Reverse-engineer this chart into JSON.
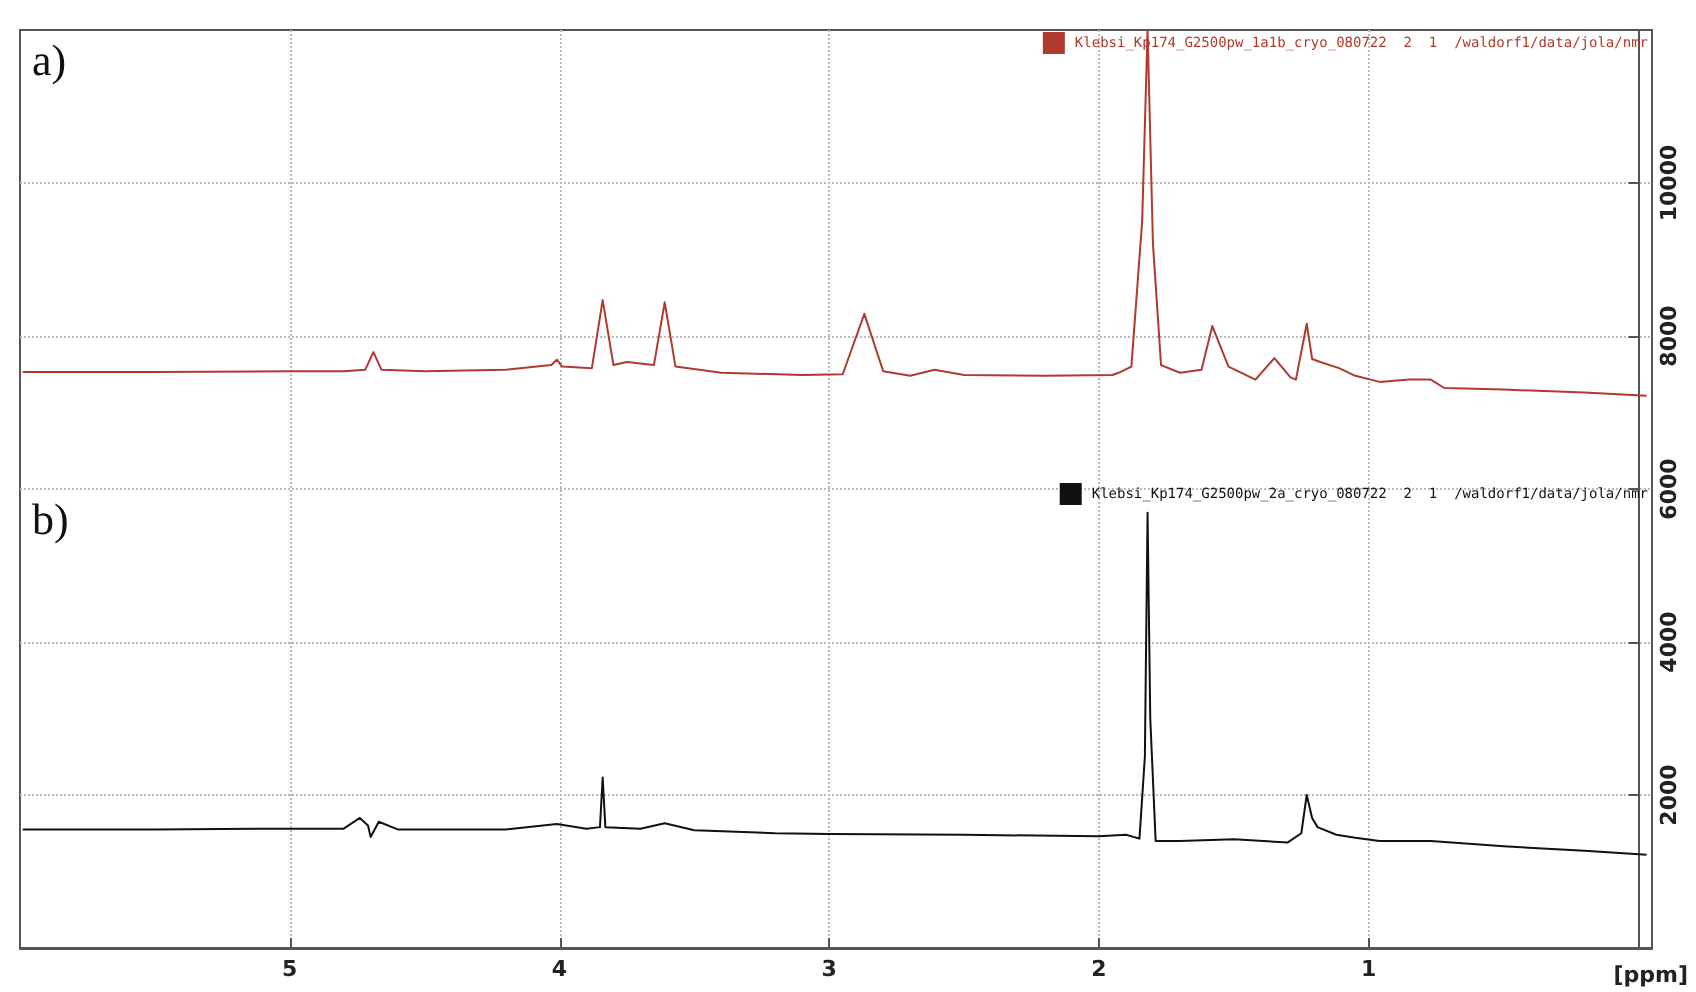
{
  "chart_data": {
    "type": "line",
    "xlabel": "[ppm]",
    "annotations": [
      "a)",
      "b)"
    ],
    "xlim": [
      6.0,
      -0.05
    ],
    "xticks": [
      5,
      4,
      3,
      2,
      1
    ],
    "ylim": [
      0,
      12000
    ],
    "yticks": [
      2000,
      4000,
      6000,
      8000,
      10000
    ],
    "grid": true,
    "legend": "top right",
    "marker": "none",
    "line_style": "solid",
    "series": [
      {
        "name": "Klebsi_Kp174_G2500pw_1a1b_cryo_080722  2  1  /waldorf1/data/jola/nmr",
        "color": "#b03a2e",
        "x": [
          5.99,
          5.5,
          5.0,
          4.8,
          4.72,
          4.69,
          4.66,
          4.5,
          4.2,
          4.03,
          4.01,
          3.99,
          3.88,
          3.84,
          3.8,
          3.75,
          3.65,
          3.61,
          3.57,
          3.4,
          3.1,
          2.95,
          2.87,
          2.8,
          2.7,
          2.61,
          2.5,
          2.2,
          1.95,
          1.92,
          1.88,
          1.84,
          1.82,
          1.8,
          1.77,
          1.7,
          1.62,
          1.58,
          1.52,
          1.42,
          1.35,
          1.29,
          1.27,
          1.23,
          1.21,
          1.18,
          1.11,
          1.05,
          0.96,
          0.85,
          0.77,
          0.72,
          0.5,
          0.2,
          -0.03
        ],
        "values": [
          7530,
          7530,
          7540,
          7540,
          7560,
          7790,
          7560,
          7540,
          7560,
          7620,
          7690,
          7600,
          7580,
          8470,
          7620,
          7660,
          7620,
          8440,
          7600,
          7520,
          7490,
          7500,
          8290,
          7540,
          7480,
          7560,
          7490,
          7480,
          7490,
          7530,
          7600,
          9500,
          12000,
          9200,
          7620,
          7520,
          7560,
          8130,
          7600,
          7430,
          7710,
          7460,
          7430,
          8160,
          7700,
          7660,
          7580,
          7480,
          7400,
          7430,
          7430,
          7320,
          7300,
          7260,
          7220
        ]
      },
      {
        "name": "Klebsi_Kp174_G2500pw_2a_cryo_080722  2  1  /waldorf1/data/jola/nmr",
        "color": "#111111",
        "x": [
          5.99,
          5.5,
          5.0,
          4.8,
          4.74,
          4.71,
          4.7,
          4.67,
          4.6,
          4.2,
          4.01,
          3.9,
          3.85,
          3.84,
          3.83,
          3.7,
          3.61,
          3.5,
          3.2,
          3.0,
          2.5,
          2.0,
          1.9,
          1.85,
          1.83,
          1.82,
          1.81,
          1.79,
          1.7,
          1.5,
          1.3,
          1.25,
          1.23,
          1.21,
          1.19,
          1.12,
          1.05,
          0.96,
          0.77,
          0.5,
          0.2,
          -0.03
        ],
        "values": [
          1550,
          1550,
          1560,
          1560,
          1700,
          1600,
          1450,
          1650,
          1550,
          1550,
          1620,
          1560,
          1580,
          2230,
          1580,
          1560,
          1630,
          1540,
          1500,
          1490,
          1480,
          1460,
          1480,
          1430,
          2500,
          5690,
          3000,
          1400,
          1400,
          1420,
          1380,
          1500,
          2000,
          1700,
          1580,
          1480,
          1440,
          1400,
          1400,
          1330,
          1270,
          1220
        ]
      }
    ]
  }
}
